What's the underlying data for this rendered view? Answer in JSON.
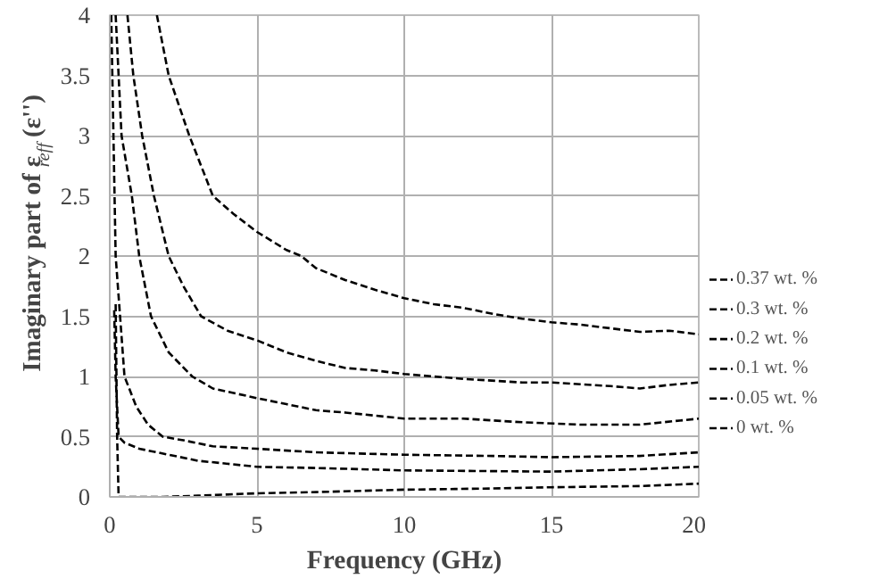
{
  "chart_data": {
    "type": "line",
    "xlabel": "Frequency (GHz)",
    "ylabel": "Imaginary part of ε$_{reff}$(ε'')",
    "xlim": [
      0,
      20
    ],
    "ylim": [
      0,
      4
    ],
    "xticks": [
      0,
      5,
      10,
      15,
      20
    ],
    "yticks": [
      0,
      0.5,
      1,
      1.5,
      2,
      2.5,
      3,
      3.5,
      4
    ],
    "grid": true,
    "legend": "right",
    "line_style": "dashed",
    "marker": "none",
    "series": [
      {
        "name": "0.37 wt. %",
        "color": "#000000",
        "x": [
          1.6,
          2.0,
          2.7,
          3.5,
          4.2,
          5,
          6,
          6.5,
          7,
          8,
          9,
          10,
          11,
          12,
          13,
          14,
          15,
          16,
          17,
          18,
          19,
          20
        ],
        "values": [
          4.0,
          3.5,
          3.0,
          2.5,
          2.35,
          2.2,
          2.05,
          2.0,
          1.9,
          1.8,
          1.72,
          1.65,
          1.6,
          1.57,
          1.52,
          1.48,
          1.45,
          1.43,
          1.4,
          1.37,
          1.38,
          1.35
        ]
      },
      {
        "name": "0.3 wt. %",
        "color": "#000000",
        "x": [
          0.6,
          0.8,
          1.1,
          1.5,
          2.0,
          2.5,
          3.1,
          4,
          5,
          6,
          7,
          8,
          9,
          10,
          12,
          14,
          15,
          17,
          18,
          19,
          20
        ],
        "values": [
          4.0,
          3.5,
          3.0,
          2.5,
          2.0,
          1.75,
          1.5,
          1.38,
          1.3,
          1.2,
          1.13,
          1.07,
          1.05,
          1.02,
          0.98,
          0.95,
          0.95,
          0.92,
          0.9,
          0.93,
          0.95
        ]
      },
      {
        "name": "0.2 wt. %",
        "color": "#000000",
        "x": [
          0.2,
          0.4,
          0.75,
          1.0,
          1.4,
          2.0,
          2.8,
          3.5,
          5,
          6,
          7,
          8,
          10,
          12,
          14,
          16,
          18,
          20
        ],
        "values": [
          4.0,
          3.0,
          2.5,
          2.0,
          1.5,
          1.2,
          1.0,
          0.9,
          0.82,
          0.77,
          0.72,
          0.7,
          0.65,
          0.65,
          0.62,
          0.6,
          0.6,
          0.65
        ]
      },
      {
        "name": "0.1 wt. %",
        "color": "#000000",
        "x": [
          0.05,
          0.2,
          0.5,
          0.9,
          1.3,
          1.8,
          2.5,
          3.5,
          5,
          7,
          10,
          13,
          15,
          18,
          20
        ],
        "values": [
          4.0,
          2.0,
          1.0,
          0.75,
          0.6,
          0.5,
          0.47,
          0.42,
          0.4,
          0.37,
          0.35,
          0.34,
          0.33,
          0.34,
          0.37
        ]
      },
      {
        "name": "0.05 wt. %",
        "color": "#000000",
        "x": [
          0.15,
          0.2,
          0.3,
          0.5,
          1.0,
          2.0,
          3.0,
          5,
          7,
          10,
          15,
          18,
          20
        ],
        "values": [
          1.55,
          1.0,
          0.5,
          0.45,
          0.4,
          0.35,
          0.3,
          0.25,
          0.24,
          0.22,
          0.21,
          0.23,
          0.25
        ]
      },
      {
        "name": "0 wt. %",
        "color": "#000000",
        "x": [
          0.2,
          0.25,
          0.3,
          1.8,
          3,
          5,
          7,
          10,
          13,
          15,
          18,
          20
        ],
        "values": [
          1.6,
          0.5,
          0.0,
          0.0,
          0.01,
          0.03,
          0.04,
          0.06,
          0.07,
          0.08,
          0.09,
          0.11
        ]
      }
    ]
  }
}
